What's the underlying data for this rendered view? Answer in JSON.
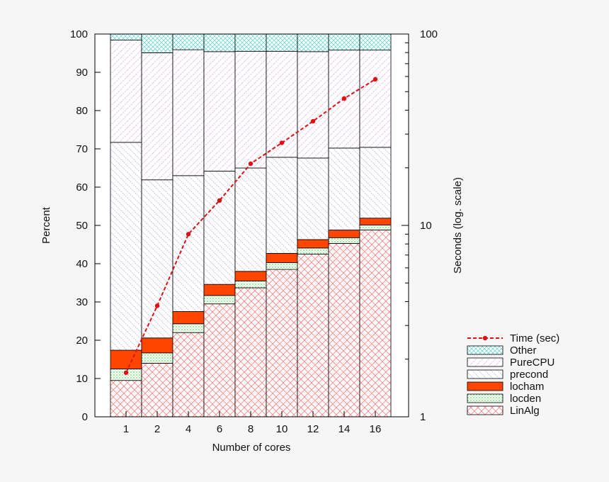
{
  "chart_data": {
    "type": "bar",
    "stacked": true,
    "xlabel": "Number of cores",
    "ylabel": "Percent",
    "y2label": "Seconds (log. scale)",
    "ylim": [
      0,
      100
    ],
    "y2lim": [
      1,
      100
    ],
    "y2scale": "log",
    "categories": [
      "1",
      "2",
      "4",
      "6",
      "8",
      "10",
      "12",
      "14",
      "16"
    ],
    "yticks": [
      "0",
      "10",
      "20",
      "30",
      "40",
      "50",
      "60",
      "70",
      "80",
      "90",
      "100"
    ],
    "y2ticks": [
      "1",
      "10",
      "100"
    ],
    "legend_position": "bottom-right",
    "series": [
      {
        "name": "LinAlg",
        "values": [
          9.5,
          14,
          22,
          29.5,
          33.7,
          38.5,
          42.5,
          45.3,
          48.8
        ],
        "color": "#ff8080",
        "pattern": "crosshatch"
      },
      {
        "name": "locden",
        "values": [
          3.0,
          2.7,
          2.3,
          2.2,
          1.8,
          1.8,
          1.6,
          1.5,
          1.3
        ],
        "color": "#33cc33",
        "pattern": "dots"
      },
      {
        "name": "locham",
        "values": [
          4.9,
          3.9,
          3.2,
          2.9,
          2.5,
          2.4,
          2.2,
          2.0,
          1.8
        ],
        "color": "#ff4500",
        "pattern": "solid"
      },
      {
        "name": "precond",
        "values": [
          54.3,
          41.3,
          35.5,
          29.6,
          27.0,
          25.1,
          21.3,
          21.4,
          18.5
        ],
        "color": "#7a7ad8",
        "pattern": "diagonal-left"
      },
      {
        "name": "PureCPU",
        "values": [
          26.7,
          33.2,
          32.9,
          31.2,
          30.5,
          27.7,
          27.8,
          25.6,
          25.4
        ],
        "color": "#d98ad9",
        "pattern": "diagonal-right"
      },
      {
        "name": "Other",
        "values": [
          1.6,
          4.9,
          4.1,
          4.6,
          4.5,
          4.5,
          4.6,
          4.2,
          4.2
        ],
        "color": "#33cccc",
        "pattern": "diagonal-cross"
      }
    ],
    "line_series": {
      "name": "Time (sec)",
      "axis": "right",
      "values": [
        1.7,
        3.8,
        9.0,
        13.5,
        21.0,
        27.0,
        35.0,
        46.0,
        58.0
      ],
      "color": "#e01010",
      "style": "dashed-with-dots"
    }
  }
}
